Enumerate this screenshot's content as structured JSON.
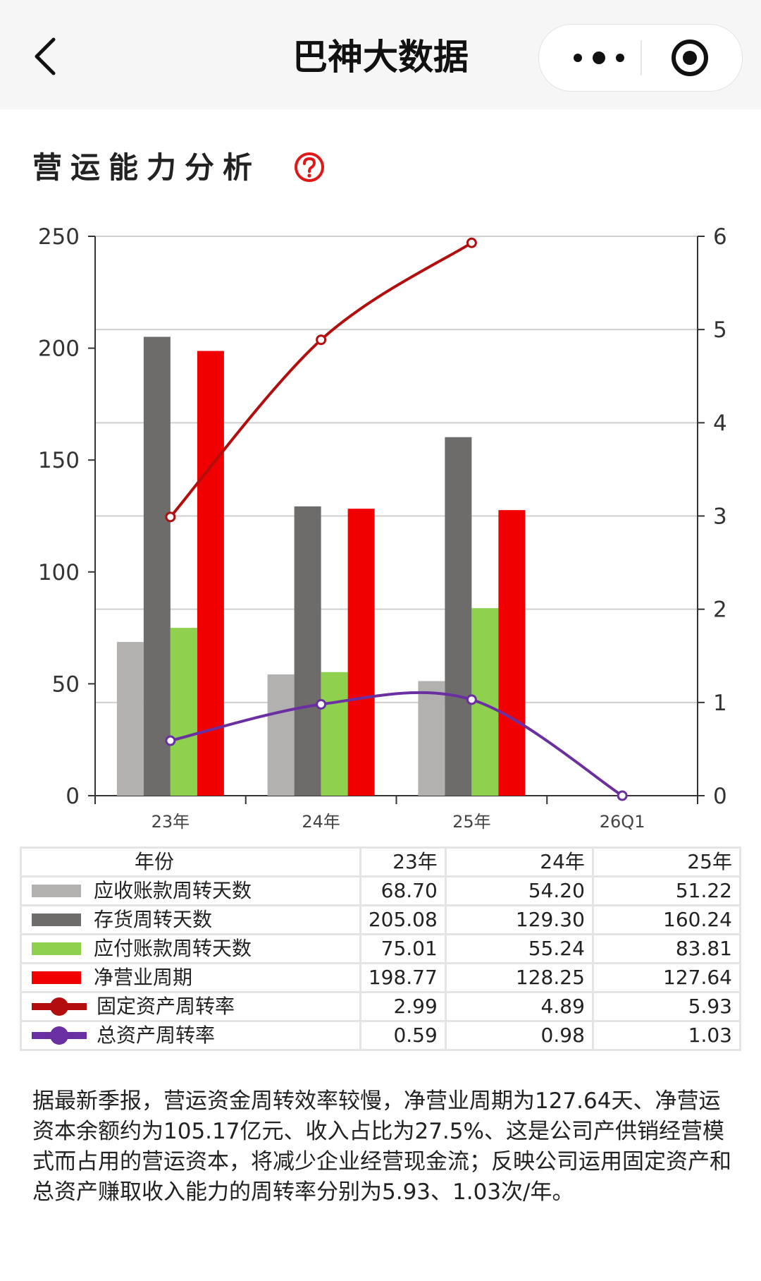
{
  "header": {
    "back_icon": "chevron-left-icon",
    "title": "巴神大数据",
    "more_icon": "more-dots-icon",
    "close_icon": "target-circle-icon"
  },
  "section": {
    "title": "营运能力分析",
    "help_icon": "question-circle-icon"
  },
  "chart_data": {
    "type": "bar",
    "categories": [
      "23年",
      "24年",
      "25年",
      "26Q1"
    ],
    "y_left": {
      "min": 0,
      "max": 250,
      "ticks": [
        0,
        50,
        100,
        150,
        200,
        250
      ]
    },
    "y_right": {
      "min": 0,
      "max": 6,
      "ticks": [
        0,
        1,
        2,
        3,
        4,
        5,
        6
      ]
    },
    "bar_series": [
      {
        "name": "应收账款周转天数",
        "color": "#b3b0b0",
        "values": [
          68.7,
          54.2,
          51.22,
          null
        ]
      },
      {
        "name": "存货周转天数",
        "color": "#6e6b6b",
        "values": [
          205.08,
          129.3,
          160.24,
          null
        ]
      },
      {
        "name": "应付账款周转天数",
        "color": "#8fd14f",
        "values": [
          75.01,
          55.24,
          83.81,
          null
        ]
      },
      {
        "name": "净营业周期",
        "color": "#f00000",
        "values": [
          198.77,
          128.25,
          127.64,
          null
        ]
      }
    ],
    "line_series": [
      {
        "name": "固定资产周转率",
        "color": "#b20e0e",
        "axis": "right",
        "values": [
          2.99,
          4.89,
          5.93,
          null
        ]
      },
      {
        "name": "总资产周转率",
        "color": "#6a2fa0",
        "axis": "right",
        "values": [
          0.59,
          0.98,
          1.03,
          0
        ]
      }
    ]
  },
  "table": {
    "header": [
      "年份",
      "23年",
      "24年",
      "25年"
    ],
    "rows": [
      {
        "label": "应收账款周转天数",
        "swatch": "bar",
        "color": "#b3b0b0",
        "values": [
          "68.70",
          "54.20",
          "51.22"
        ]
      },
      {
        "label": "存货周转天数",
        "swatch": "bar",
        "color": "#6e6b6b",
        "values": [
          "205.08",
          "129.30",
          "160.24"
        ]
      },
      {
        "label": "应付账款周转天数",
        "swatch": "bar",
        "color": "#8fd14f",
        "values": [
          "75.01",
          "55.24",
          "83.81"
        ]
      },
      {
        "label": "净营业周期",
        "swatch": "bar",
        "color": "#f00000",
        "values": [
          "198.77",
          "128.25",
          "127.64"
        ]
      },
      {
        "label": "固定资产周转率",
        "swatch": "line",
        "color": "#b20e0e",
        "values": [
          "2.99",
          "4.89",
          "5.93"
        ]
      },
      {
        "label": "总资产周转率",
        "swatch": "line",
        "color": "#6a2fa0",
        "values": [
          "0.59",
          "0.98",
          "1.03"
        ]
      }
    ]
  },
  "summary": "据最新季报，营运资金周转效率较慢，净营业周期为127.64天、净营运资本余额约为105.17亿元、收入占比为27.5%、这是公司产供销经营模式而占用的营运资本，将减少企业经营现金流；反映公司运用固定资产和总资产赚取收入能力的周转率分别为5.93、1.03次/年。"
}
